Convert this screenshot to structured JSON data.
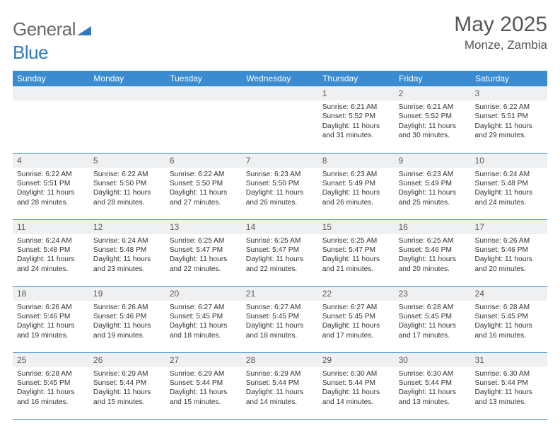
{
  "logo": {
    "text1": "General",
    "text2": "Blue"
  },
  "title": {
    "month": "May 2025",
    "location": "Monze, Zambia"
  },
  "colors": {
    "header_bg": "#3b8bd0",
    "header_fg": "#ffffff",
    "daynum_bg": "#eef0f2",
    "border": "#3b8bd0",
    "logo_gray": "#6a6a6a",
    "logo_blue": "#3478c0",
    "body_text": "#333333"
  },
  "weekdays": [
    "Sunday",
    "Monday",
    "Tuesday",
    "Wednesday",
    "Thursday",
    "Friday",
    "Saturday"
  ],
  "weeks": [
    [
      {
        "n": "",
        "sr": "",
        "ss": "",
        "dl": ""
      },
      {
        "n": "",
        "sr": "",
        "ss": "",
        "dl": ""
      },
      {
        "n": "",
        "sr": "",
        "ss": "",
        "dl": ""
      },
      {
        "n": "",
        "sr": "",
        "ss": "",
        "dl": ""
      },
      {
        "n": "1",
        "sr": "Sunrise: 6:21 AM",
        "ss": "Sunset: 5:52 PM",
        "dl": "Daylight: 11 hours and 31 minutes."
      },
      {
        "n": "2",
        "sr": "Sunrise: 6:21 AM",
        "ss": "Sunset: 5:52 PM",
        "dl": "Daylight: 11 hours and 30 minutes."
      },
      {
        "n": "3",
        "sr": "Sunrise: 6:22 AM",
        "ss": "Sunset: 5:51 PM",
        "dl": "Daylight: 11 hours and 29 minutes."
      }
    ],
    [
      {
        "n": "4",
        "sr": "Sunrise: 6:22 AM",
        "ss": "Sunset: 5:51 PM",
        "dl": "Daylight: 11 hours and 28 minutes."
      },
      {
        "n": "5",
        "sr": "Sunrise: 6:22 AM",
        "ss": "Sunset: 5:50 PM",
        "dl": "Daylight: 11 hours and 28 minutes."
      },
      {
        "n": "6",
        "sr": "Sunrise: 6:22 AM",
        "ss": "Sunset: 5:50 PM",
        "dl": "Daylight: 11 hours and 27 minutes."
      },
      {
        "n": "7",
        "sr": "Sunrise: 6:23 AM",
        "ss": "Sunset: 5:50 PM",
        "dl": "Daylight: 11 hours and 26 minutes."
      },
      {
        "n": "8",
        "sr": "Sunrise: 6:23 AM",
        "ss": "Sunset: 5:49 PM",
        "dl": "Daylight: 11 hours and 26 minutes."
      },
      {
        "n": "9",
        "sr": "Sunrise: 6:23 AM",
        "ss": "Sunset: 5:49 PM",
        "dl": "Daylight: 11 hours and 25 minutes."
      },
      {
        "n": "10",
        "sr": "Sunrise: 6:24 AM",
        "ss": "Sunset: 5:48 PM",
        "dl": "Daylight: 11 hours and 24 minutes."
      }
    ],
    [
      {
        "n": "11",
        "sr": "Sunrise: 6:24 AM",
        "ss": "Sunset: 5:48 PM",
        "dl": "Daylight: 11 hours and 24 minutes."
      },
      {
        "n": "12",
        "sr": "Sunrise: 6:24 AM",
        "ss": "Sunset: 5:48 PM",
        "dl": "Daylight: 11 hours and 23 minutes."
      },
      {
        "n": "13",
        "sr": "Sunrise: 6:25 AM",
        "ss": "Sunset: 5:47 PM",
        "dl": "Daylight: 11 hours and 22 minutes."
      },
      {
        "n": "14",
        "sr": "Sunrise: 6:25 AM",
        "ss": "Sunset: 5:47 PM",
        "dl": "Daylight: 11 hours and 22 minutes."
      },
      {
        "n": "15",
        "sr": "Sunrise: 6:25 AM",
        "ss": "Sunset: 5:47 PM",
        "dl": "Daylight: 11 hours and 21 minutes."
      },
      {
        "n": "16",
        "sr": "Sunrise: 6:25 AM",
        "ss": "Sunset: 5:46 PM",
        "dl": "Daylight: 11 hours and 20 minutes."
      },
      {
        "n": "17",
        "sr": "Sunrise: 6:26 AM",
        "ss": "Sunset: 5:46 PM",
        "dl": "Daylight: 11 hours and 20 minutes."
      }
    ],
    [
      {
        "n": "18",
        "sr": "Sunrise: 6:26 AM",
        "ss": "Sunset: 5:46 PM",
        "dl": "Daylight: 11 hours and 19 minutes."
      },
      {
        "n": "19",
        "sr": "Sunrise: 6:26 AM",
        "ss": "Sunset: 5:46 PM",
        "dl": "Daylight: 11 hours and 19 minutes."
      },
      {
        "n": "20",
        "sr": "Sunrise: 6:27 AM",
        "ss": "Sunset: 5:45 PM",
        "dl": "Daylight: 11 hours and 18 minutes."
      },
      {
        "n": "21",
        "sr": "Sunrise: 6:27 AM",
        "ss": "Sunset: 5:45 PM",
        "dl": "Daylight: 11 hours and 18 minutes."
      },
      {
        "n": "22",
        "sr": "Sunrise: 6:27 AM",
        "ss": "Sunset: 5:45 PM",
        "dl": "Daylight: 11 hours and 17 minutes."
      },
      {
        "n": "23",
        "sr": "Sunrise: 6:28 AM",
        "ss": "Sunset: 5:45 PM",
        "dl": "Daylight: 11 hours and 17 minutes."
      },
      {
        "n": "24",
        "sr": "Sunrise: 6:28 AM",
        "ss": "Sunset: 5:45 PM",
        "dl": "Daylight: 11 hours and 16 minutes."
      }
    ],
    [
      {
        "n": "25",
        "sr": "Sunrise: 6:28 AM",
        "ss": "Sunset: 5:45 PM",
        "dl": "Daylight: 11 hours and 16 minutes."
      },
      {
        "n": "26",
        "sr": "Sunrise: 6:29 AM",
        "ss": "Sunset: 5:44 PM",
        "dl": "Daylight: 11 hours and 15 minutes."
      },
      {
        "n": "27",
        "sr": "Sunrise: 6:29 AM",
        "ss": "Sunset: 5:44 PM",
        "dl": "Daylight: 11 hours and 15 minutes."
      },
      {
        "n": "28",
        "sr": "Sunrise: 6:29 AM",
        "ss": "Sunset: 5:44 PM",
        "dl": "Daylight: 11 hours and 14 minutes."
      },
      {
        "n": "29",
        "sr": "Sunrise: 6:30 AM",
        "ss": "Sunset: 5:44 PM",
        "dl": "Daylight: 11 hours and 14 minutes."
      },
      {
        "n": "30",
        "sr": "Sunrise: 6:30 AM",
        "ss": "Sunset: 5:44 PM",
        "dl": "Daylight: 11 hours and 13 minutes."
      },
      {
        "n": "31",
        "sr": "Sunrise: 6:30 AM",
        "ss": "Sunset: 5:44 PM",
        "dl": "Daylight: 11 hours and 13 minutes."
      }
    ]
  ]
}
